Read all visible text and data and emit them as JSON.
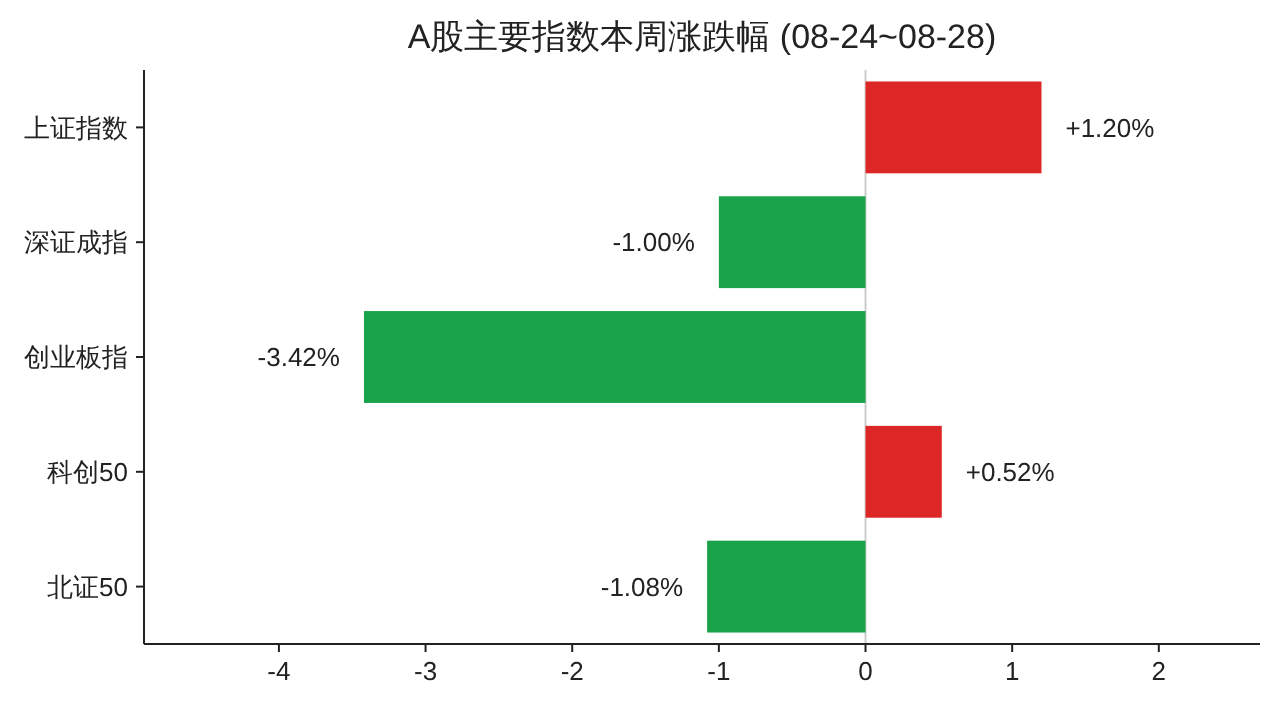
{
  "chart_data": {
    "type": "bar",
    "orientation": "horizontal",
    "title": "A股主要指数本周涨跌幅 (08-24~08-28)",
    "categories": [
      "上证指数",
      "深证成指",
      "创业板指",
      "科创50",
      "北证50"
    ],
    "values": [
      1.2,
      -1.0,
      -3.42,
      0.52,
      -1.08
    ],
    "colors": [
      "#dd2727",
      "#18a34a",
      "#18a34a",
      "#dd2727",
      "#18a34a"
    ],
    "value_labels": [
      "+1.20%",
      "-1.00%",
      "-3.42%",
      "+0.52%",
      "-1.08%"
    ],
    "xlim": [
      -4.92,
      2.69
    ],
    "xticks": [
      -4,
      -3,
      -2,
      -1,
      0,
      1,
      2
    ],
    "ref_lines": [
      {
        "axis": "x",
        "value": 0,
        "color": "#cccccc"
      }
    ]
  }
}
